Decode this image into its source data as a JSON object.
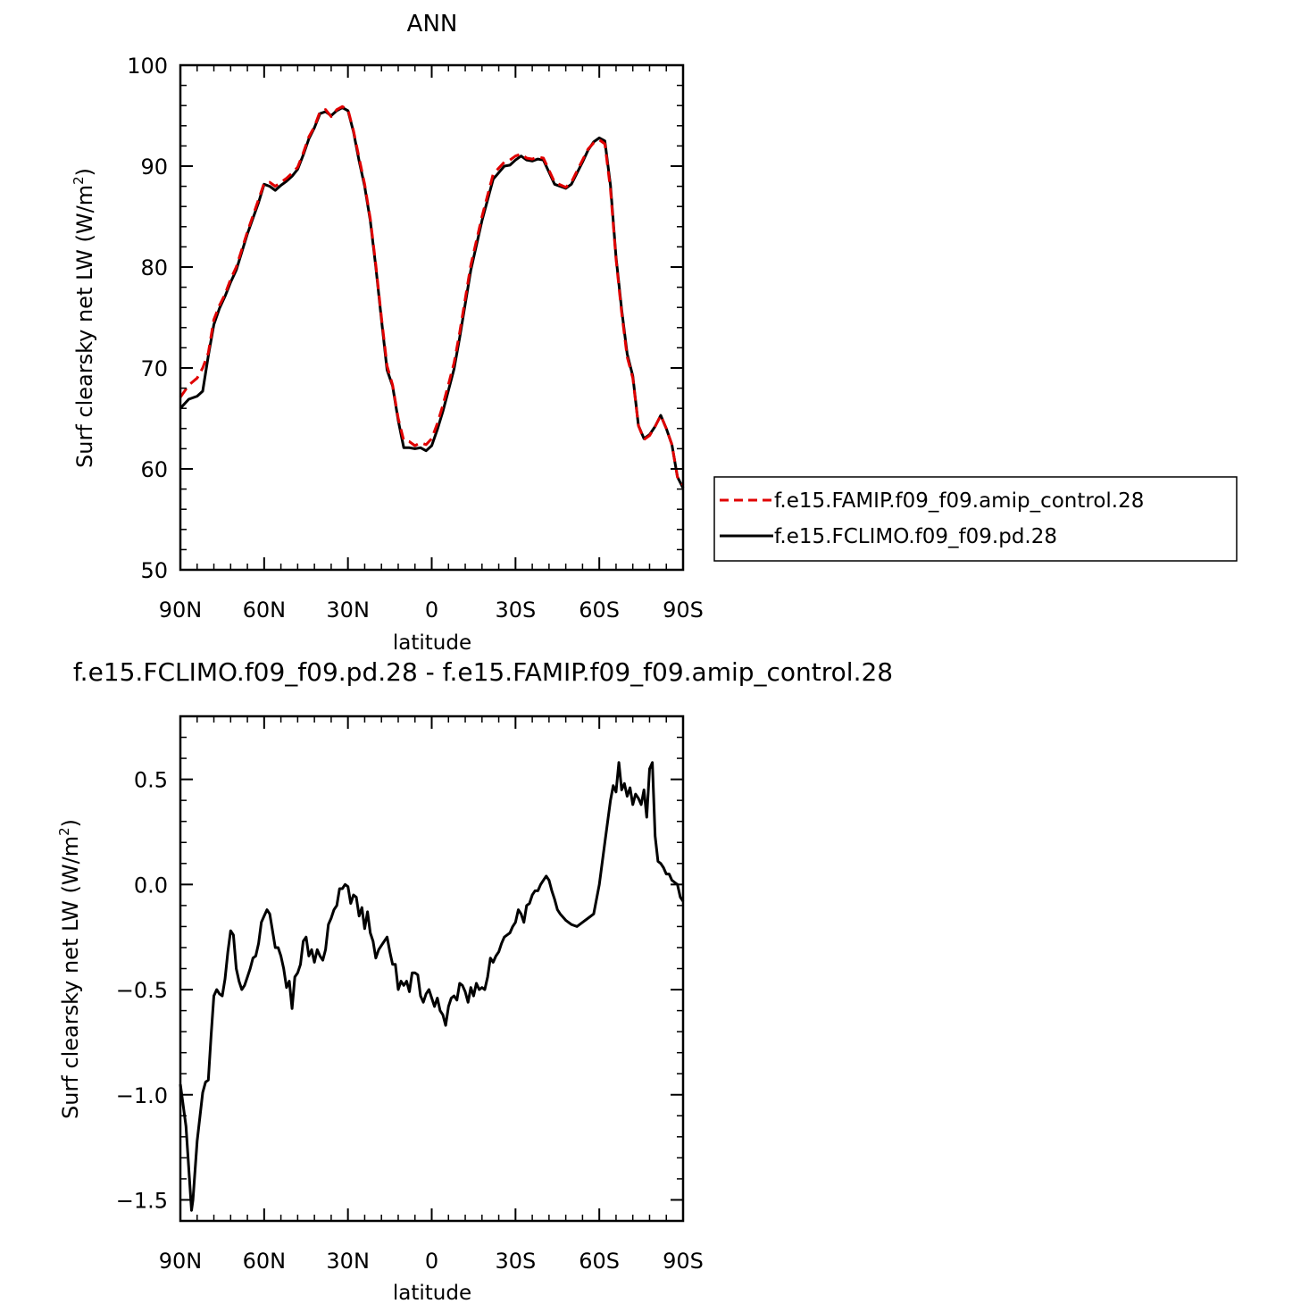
{
  "chart_data": [
    {
      "type": "line",
      "title": "ANN",
      "xlabel": "latitude",
      "ylabel_main": "Surf clearsky net LW (W/m",
      "ylabel_sup": "2",
      "ylabel_close": ")",
      "xlim": [
        90,
        -90
      ],
      "ylim": [
        50,
        100
      ],
      "xticks": [
        {
          "value": 90,
          "label": "90N"
        },
        {
          "value": 60,
          "label": "60N"
        },
        {
          "value": 30,
          "label": "30N"
        },
        {
          "value": 0,
          "label": "0"
        },
        {
          "value": -30,
          "label": "30S"
        },
        {
          "value": -60,
          "label": "60S"
        },
        {
          "value": -90,
          "label": "90S"
        }
      ],
      "yticks": [
        {
          "value": 100,
          "label": "100"
        },
        {
          "value": 90,
          "label": "90"
        },
        {
          "value": 80,
          "label": "80"
        },
        {
          "value": 70,
          "label": "70"
        },
        {
          "value": 60,
          "label": "60"
        },
        {
          "value": 50,
          "label": "50"
        }
      ],
      "legend": "right",
      "series": [
        {
          "name": "f.e15.FAMIP.f09_f09.amip_control.28",
          "color": "#e00000",
          "dash": "dashed",
          "x": [
            90,
            87,
            84,
            82,
            80,
            78,
            76,
            74,
            72,
            70,
            66,
            62,
            60,
            58,
            56,
            54,
            52,
            50,
            48,
            46,
            44,
            42,
            40,
            38,
            36,
            34,
            32,
            30,
            28,
            26,
            24,
            22,
            20,
            18,
            16,
            14,
            12,
            10,
            8,
            6,
            4,
            2,
            0,
            -2,
            -4,
            -6,
            -8,
            -10,
            -14,
            -18,
            -22,
            -26,
            -28,
            -30,
            -32,
            -34,
            -36,
            -38,
            -40,
            -44,
            -48,
            -50,
            -52,
            -54,
            -56,
            -58,
            -60,
            -62,
            -64,
            -66,
            -68,
            -70,
            -72,
            -74,
            -76,
            -78,
            -80,
            -82,
            -84,
            -86,
            -88,
            -90
          ],
          "y": [
            67.1,
            68.3,
            69.0,
            70.0,
            71.5,
            74.8,
            76.2,
            77.3,
            78.8,
            80.0,
            83.5,
            86.7,
            88.3,
            88.4,
            88.0,
            88.4,
            88.8,
            89.3,
            89.9,
            91.3,
            92.9,
            93.9,
            95.4,
            95.6,
            94.9,
            95.6,
            95.9,
            95.6,
            93.5,
            90.8,
            88.2,
            84.8,
            80.2,
            75.0,
            70.2,
            68.3,
            65.0,
            62.8,
            62.7,
            62.3,
            62.6,
            62.4,
            63.0,
            64.5,
            66.3,
            68.4,
            70.5,
            73.5,
            80.2,
            85.0,
            89.2,
            90.4,
            90.6,
            91.0,
            91.2,
            90.8,
            90.7,
            90.9,
            90.8,
            88.4,
            87.9,
            88.4,
            89.5,
            90.6,
            91.7,
            92.3,
            92.6,
            92.2,
            87.7,
            80.8,
            75.5,
            71.1,
            69.0,
            64.3,
            62.9,
            63.3,
            64.2,
            65.3,
            64.0,
            62.4,
            59.2,
            58.4
          ]
        },
        {
          "name": "f.e15.FCLIMO.f09_f09.pd.28",
          "color": "#000000",
          "dash": "solid",
          "x": [
            90,
            87,
            84,
            82,
            80,
            78,
            76,
            74,
            72,
            70,
            66,
            62,
            60,
            58,
            56,
            54,
            52,
            50,
            48,
            46,
            44,
            42,
            40,
            38,
            36,
            34,
            32,
            30,
            28,
            26,
            24,
            22,
            20,
            18,
            16,
            14,
            12,
            10,
            8,
            6,
            4,
            2,
            0,
            -2,
            -4,
            -6,
            -8,
            -10,
            -14,
            -18,
            -22,
            -26,
            -28,
            -30,
            -32,
            -34,
            -36,
            -38,
            -40,
            -44,
            -48,
            -50,
            -52,
            -54,
            -56,
            -58,
            -60,
            -62,
            -64,
            -66,
            -68,
            -70,
            -72,
            -74,
            -76,
            -78,
            -80,
            -82,
            -84,
            -86,
            -88,
            -90
          ],
          "y": [
            66.0,
            66.9,
            67.2,
            67.7,
            71.2,
            74.3,
            75.9,
            77.1,
            78.5,
            79.7,
            83.3,
            86.4,
            88.2,
            88.0,
            87.6,
            88.1,
            88.5,
            89.0,
            89.7,
            91.1,
            92.7,
            93.8,
            95.2,
            95.4,
            95.0,
            95.5,
            95.8,
            95.5,
            93.4,
            90.5,
            88.0,
            84.6,
            80.0,
            74.8,
            69.8,
            68.2,
            64.8,
            62.1,
            62.1,
            62.0,
            62.1,
            61.8,
            62.3,
            63.9,
            65.7,
            67.8,
            69.9,
            73.0,
            79.7,
            84.6,
            88.7,
            90.0,
            90.1,
            90.6,
            91.0,
            90.6,
            90.5,
            90.7,
            90.6,
            88.2,
            87.8,
            88.2,
            89.3,
            90.4,
            91.6,
            92.4,
            92.8,
            92.5,
            88.1,
            81.0,
            75.8,
            71.4,
            69.2,
            64.3,
            63.0,
            63.4,
            64.2,
            65.3,
            64.0,
            62.4,
            59.2,
            58.1
          ]
        }
      ]
    },
    {
      "type": "line",
      "title": "f.e15.FCLIMO.f09_f09.pd.28 - f.e15.FAMIP.f09_f09.amip_control.28",
      "xlabel": "latitude",
      "ylabel_main": "Surf clearsky net LW (W/m",
      "ylabel_sup": "2",
      "ylabel_close": ")",
      "xlim": [
        90,
        -90
      ],
      "ylim": [
        -1.6,
        0.8
      ],
      "xticks": [
        {
          "value": 90,
          "label": "90N"
        },
        {
          "value": 60,
          "label": "60N"
        },
        {
          "value": 30,
          "label": "30N"
        },
        {
          "value": 0,
          "label": "0"
        },
        {
          "value": -30,
          "label": "30S"
        },
        {
          "value": -60,
          "label": "60S"
        },
        {
          "value": -90,
          "label": "90S"
        }
      ],
      "yticks": [
        {
          "value": 0.5,
          "label": "0.5"
        },
        {
          "value": 0.0,
          "label": "0.0"
        },
        {
          "value": -0.5,
          "label": "−0.5"
        },
        {
          "value": -1.0,
          "label": "−1.0"
        },
        {
          "value": -1.5,
          "label": "−1.5"
        }
      ],
      "series": [
        {
          "color": "#000000",
          "dash": "solid",
          "x": [
            90,
            88,
            86,
            85.5,
            84,
            82,
            81,
            80,
            79,
            78,
            77,
            76,
            75,
            74,
            73,
            72,
            71,
            70,
            69,
            68,
            67,
            66,
            65,
            64,
            63,
            62,
            61,
            60,
            59,
            58,
            57,
            56,
            55,
            54,
            53,
            52,
            51,
            50,
            49,
            48,
            47,
            46,
            45,
            44,
            43,
            42,
            41,
            40,
            39,
            38,
            37,
            36,
            35,
            34,
            33,
            32,
            31,
            30,
            29,
            28,
            27,
            26,
            25,
            24,
            23,
            22,
            21,
            20,
            19,
            18,
            17,
            16,
            15,
            14,
            13,
            12,
            11,
            10,
            9,
            8,
            7,
            6,
            5,
            4,
            3,
            2,
            1,
            0,
            -1,
            -2,
            -3,
            -4,
            -5,
            -6,
            -7,
            -8,
            -9,
            -10,
            -11,
            -12,
            -13,
            -14,
            -15,
            -16,
            -17,
            -18,
            -19,
            -20,
            -21,
            -22,
            -23,
            -24,
            -25,
            -26,
            -27,
            -28,
            -29,
            -30,
            -31,
            -32,
            -33,
            -34,
            -35,
            -36,
            -37,
            -38,
            -39,
            -40,
            -41,
            -42,
            -43,
            -44,
            -45,
            -46,
            -48,
            -50,
            -52,
            -54,
            -56,
            -58,
            -60,
            -62,
            -64,
            -65,
            -66,
            -67,
            -68,
            -69,
            -70,
            -71,
            -72,
            -73,
            -74,
            -75,
            -76,
            -77,
            -78,
            -79,
            -80,
            -81,
            -82,
            -83,
            -84,
            -85,
            -86,
            -87,
            -88,
            -89,
            -90
          ],
          "y": [
            -0.95,
            -1.15,
            -1.55,
            -1.5,
            -1.22,
            -0.99,
            -0.94,
            -0.93,
            -0.72,
            -0.53,
            -0.5,
            -0.52,
            -0.53,
            -0.45,
            -0.32,
            -0.22,
            -0.24,
            -0.4,
            -0.46,
            -0.5,
            -0.48,
            -0.44,
            -0.4,
            -0.35,
            -0.34,
            -0.28,
            -0.18,
            -0.15,
            -0.12,
            -0.14,
            -0.22,
            -0.3,
            -0.3,
            -0.34,
            -0.4,
            -0.49,
            -0.46,
            -0.59,
            -0.44,
            -0.42,
            -0.38,
            -0.27,
            -0.25,
            -0.34,
            -0.31,
            -0.37,
            -0.31,
            -0.34,
            -0.36,
            -0.31,
            -0.19,
            -0.16,
            -0.12,
            -0.1,
            -0.02,
            -0.02,
            0.0,
            -0.01,
            -0.09,
            -0.05,
            -0.06,
            -0.15,
            -0.11,
            -0.21,
            -0.13,
            -0.23,
            -0.27,
            -0.35,
            -0.31,
            -0.29,
            -0.27,
            -0.25,
            -0.32,
            -0.38,
            -0.38,
            -0.5,
            -0.46,
            -0.48,
            -0.46,
            -0.51,
            -0.42,
            -0.42,
            -0.43,
            -0.53,
            -0.56,
            -0.52,
            -0.5,
            -0.54,
            -0.58,
            -0.54,
            -0.6,
            -0.62,
            -0.67,
            -0.58,
            -0.54,
            -0.53,
            -0.55,
            -0.47,
            -0.48,
            -0.51,
            -0.56,
            -0.49,
            -0.53,
            -0.47,
            -0.5,
            -0.49,
            -0.5,
            -0.44,
            -0.35,
            -0.37,
            -0.34,
            -0.32,
            -0.28,
            -0.25,
            -0.24,
            -0.23,
            -0.2,
            -0.18,
            -0.12,
            -0.14,
            -0.18,
            -0.1,
            -0.09,
            -0.05,
            -0.03,
            -0.03,
            0.0,
            0.02,
            0.04,
            0.02,
            -0.03,
            -0.07,
            -0.12,
            -0.14,
            -0.17,
            -0.19,
            -0.2,
            -0.18,
            -0.16,
            -0.14,
            0.0,
            0.2,
            0.4,
            0.47,
            0.44,
            0.58,
            0.45,
            0.48,
            0.42,
            0.46,
            0.38,
            0.43,
            0.41,
            0.38,
            0.45,
            0.32,
            0.55,
            0.58,
            0.23,
            0.11,
            0.1,
            0.08,
            0.05,
            0.05,
            0.02,
            0.01,
            0.0,
            -0.06,
            -0.08
          ]
        }
      ]
    }
  ]
}
